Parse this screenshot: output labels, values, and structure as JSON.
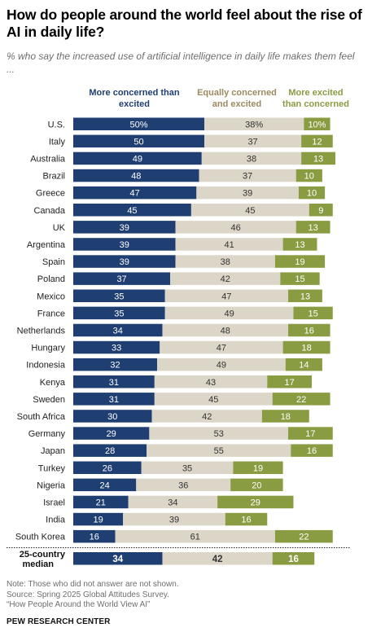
{
  "title": "How do people around the world feel about the rise of AI in daily life?",
  "subtitle": "% who say the increased use of artificial intelligence in daily life makes them feel ...",
  "legend": {
    "concerned": "More concerned than excited",
    "equal": "Equally concerned and excited",
    "excited": "More excited than concerned"
  },
  "colors": {
    "concerned": "#1f3f73",
    "equal": "#dcd6c9",
    "excited": "#8a9c42",
    "separator": "#222222"
  },
  "notes": {
    "note": "Note: Those who did not answer are not shown.",
    "source": "Source: Spring 2025 Global Attitudes Survey.",
    "report": "“How People Around the World View AI”"
  },
  "footer": "PEW RESEARCH CENTER",
  "chart_data": {
    "type": "bar",
    "stacked": true,
    "orientation": "horizontal",
    "categories": [
      "U.S.",
      "Italy",
      "Australia",
      "Brazil",
      "Greece",
      "Canada",
      "UK",
      "Argentina",
      "Spain",
      "Poland",
      "Mexico",
      "France",
      "Netherlands",
      "Hungary",
      "Indonesia",
      "Kenya",
      "Sweden",
      "South Africa",
      "Germany",
      "Japan",
      "Turkey",
      "Nigeria",
      "Israel",
      "India",
      "South Korea"
    ],
    "series": [
      {
        "name": "More concerned than excited",
        "values": [
          50,
          50,
          49,
          48,
          47,
          45,
          39,
          39,
          39,
          37,
          35,
          35,
          34,
          33,
          32,
          31,
          31,
          30,
          29,
          28,
          26,
          24,
          21,
          19,
          16
        ]
      },
      {
        "name": "Equally concerned and excited",
        "values": [
          38,
          37,
          38,
          37,
          39,
          45,
          46,
          41,
          38,
          42,
          47,
          49,
          48,
          47,
          49,
          43,
          45,
          42,
          53,
          55,
          35,
          36,
          34,
          39,
          61
        ]
      },
      {
        "name": "More excited than concerned",
        "values": [
          10,
          12,
          13,
          10,
          10,
          9,
          13,
          13,
          19,
          15,
          13,
          15,
          16,
          18,
          14,
          17,
          22,
          18,
          17,
          16,
          19,
          20,
          29,
          16,
          22
        ]
      }
    ],
    "first_value_suffix": "%",
    "median": {
      "label_line1": "25-country",
      "label_line2": "median",
      "values": [
        34,
        42,
        16
      ]
    }
  }
}
